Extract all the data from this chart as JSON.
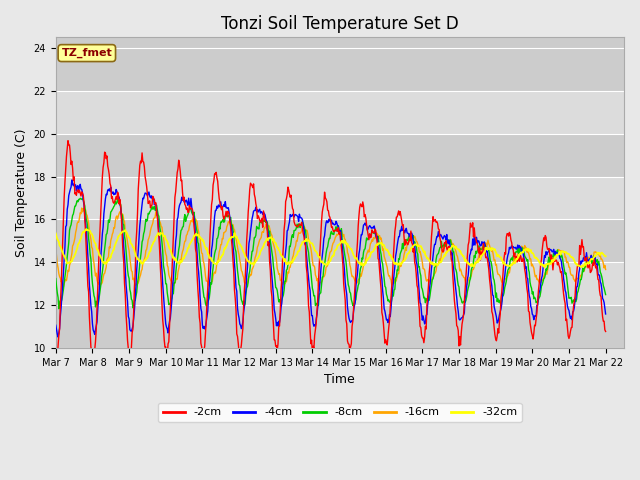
{
  "title": "Tonzi Soil Temperature Set D",
  "xlabel": "Time",
  "ylabel": "Soil Temperature (C)",
  "annotation_text": "TZ_fmet",
  "annotation_color": "#8B0000",
  "annotation_bg": "#FFFF99",
  "annotation_border": "#8B6914",
  "ylim": [
    10,
    24.5
  ],
  "colors": {
    "-2cm": "#FF0000",
    "-4cm": "#0000FF",
    "-8cm": "#00CC00",
    "-16cm": "#FFA500",
    "-32cm": "#FFFF00"
  },
  "tick_labels": [
    "Mar 7",
    "Mar 8",
    "Mar 9",
    "Mar 10",
    "Mar 11",
    "Mar 12",
    "Mar 13",
    "Mar 14",
    "Mar 15",
    "Mar 16",
    "Mar 17",
    "Mar 18",
    "Mar 19",
    "Mar 20",
    "Mar 21",
    "Mar 22"
  ],
  "yticks": [
    10,
    12,
    14,
    16,
    18,
    20,
    22,
    24
  ],
  "fig_bg": "#E8E8E8",
  "plot_bg": "#DCDCDC",
  "title_fontsize": 12,
  "axis_label_fontsize": 9,
  "tick_fontsize": 7,
  "legend_fontsize": 8
}
